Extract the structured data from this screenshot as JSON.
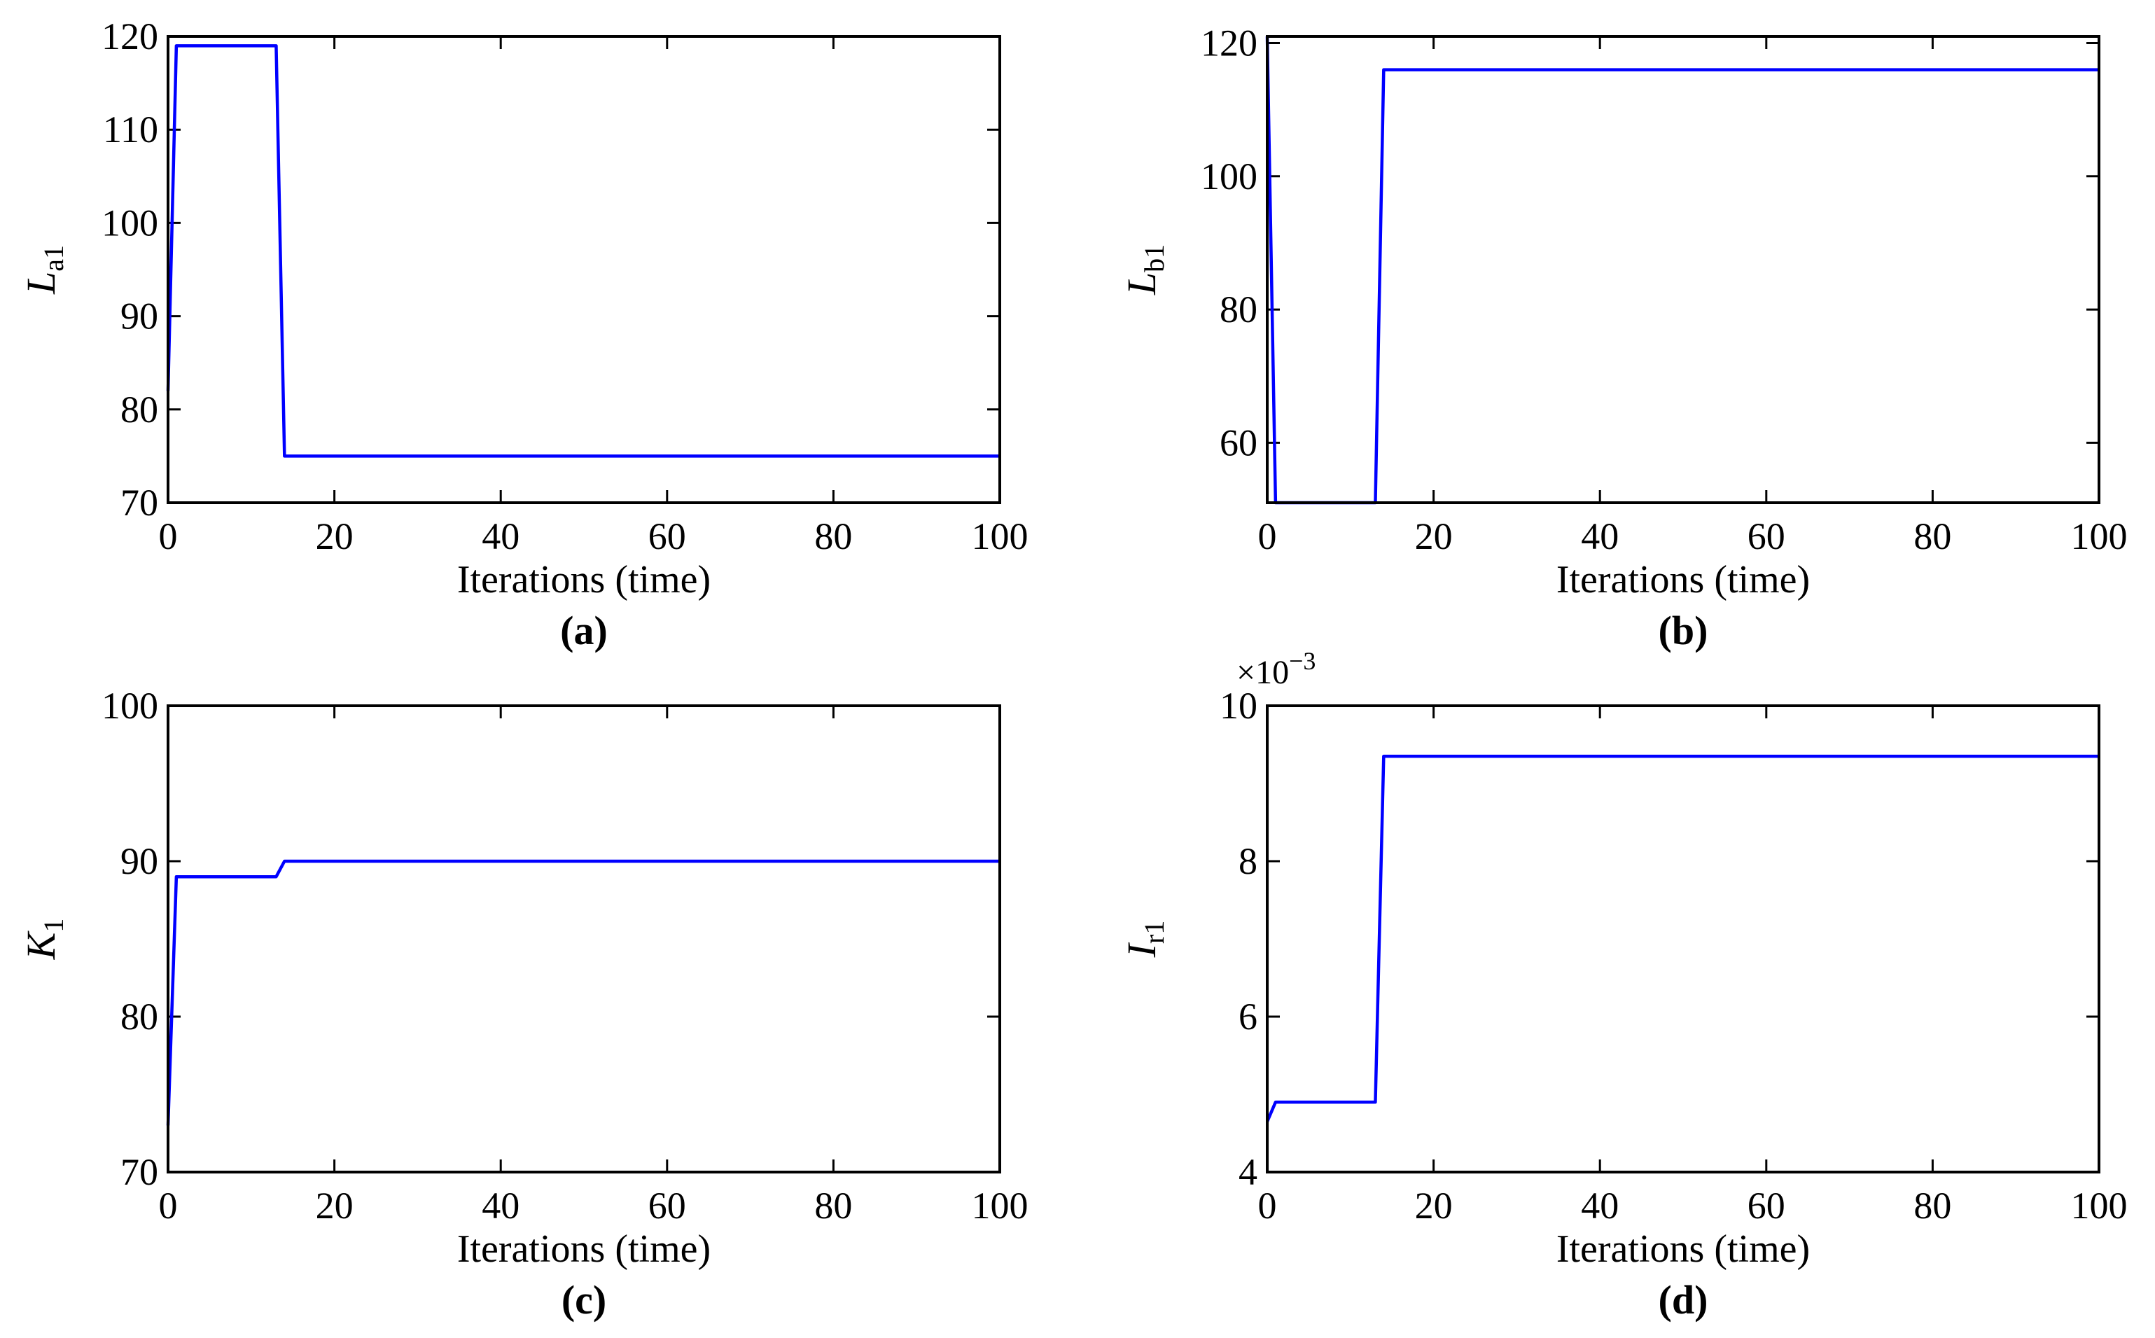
{
  "chart_data": [
    {
      "type": "line",
      "panel_label": "(a)",
      "xlabel": "Iterations (time)",
      "ylabel": {
        "main": "L",
        "sub": "a1"
      },
      "xlim": [
        0,
        100
      ],
      "ylim": [
        70,
        120
      ],
      "xticks": [
        0,
        20,
        40,
        60,
        80,
        100
      ],
      "yticks": [
        70,
        80,
        90,
        100,
        110,
        120
      ],
      "series": [
        {
          "color": "#0000ff",
          "x": [
            0,
            1,
            13,
            14,
            100
          ],
          "y": [
            82,
            119,
            119,
            75,
            75
          ]
        }
      ]
    },
    {
      "type": "line",
      "panel_label": "(b)",
      "xlabel": "Iterations (time)",
      "ylabel": {
        "main": "L",
        "sub": "b1"
      },
      "xlim": [
        0,
        100
      ],
      "ylim": [
        51,
        121
      ],
      "xticks": [
        0,
        20,
        40,
        60,
        80,
        100
      ],
      "yticks": [
        60,
        80,
        100,
        120
      ],
      "series": [
        {
          "color": "#0000ff",
          "x": [
            0,
            1,
            13,
            14,
            100
          ],
          "y": [
            121,
            51,
            51,
            116,
            116
          ]
        }
      ]
    },
    {
      "type": "line",
      "panel_label": "(c)",
      "xlabel": "Iterations (time)",
      "ylabel": {
        "main": "K",
        "sub": "1"
      },
      "xlim": [
        0,
        100
      ],
      "ylim": [
        70,
        100
      ],
      "xticks": [
        0,
        20,
        40,
        60,
        80,
        100
      ],
      "yticks": [
        70,
        80,
        90,
        100
      ],
      "series": [
        {
          "color": "#0000ff",
          "x": [
            0,
            1,
            13,
            14,
            100
          ],
          "y": [
            73,
            89,
            89,
            90,
            90
          ]
        }
      ]
    },
    {
      "type": "line",
      "panel_label": "(d)",
      "xlabel": "Iterations (time)",
      "ylabel": {
        "main": "I",
        "sub": "r",
        "after": "1"
      },
      "exponent_label": "×10",
      "exponent_power": "−3",
      "xlim": [
        0,
        100
      ],
      "ylim": [
        4,
        10
      ],
      "xticks": [
        0,
        20,
        40,
        60,
        80,
        100
      ],
      "yticks": [
        4,
        6,
        8,
        10
      ],
      "series": [
        {
          "color": "#0000ff",
          "x": [
            0,
            1,
            13,
            14,
            100
          ],
          "y": [
            4.65,
            4.9,
            4.9,
            9.35,
            9.35
          ]
        }
      ]
    }
  ]
}
